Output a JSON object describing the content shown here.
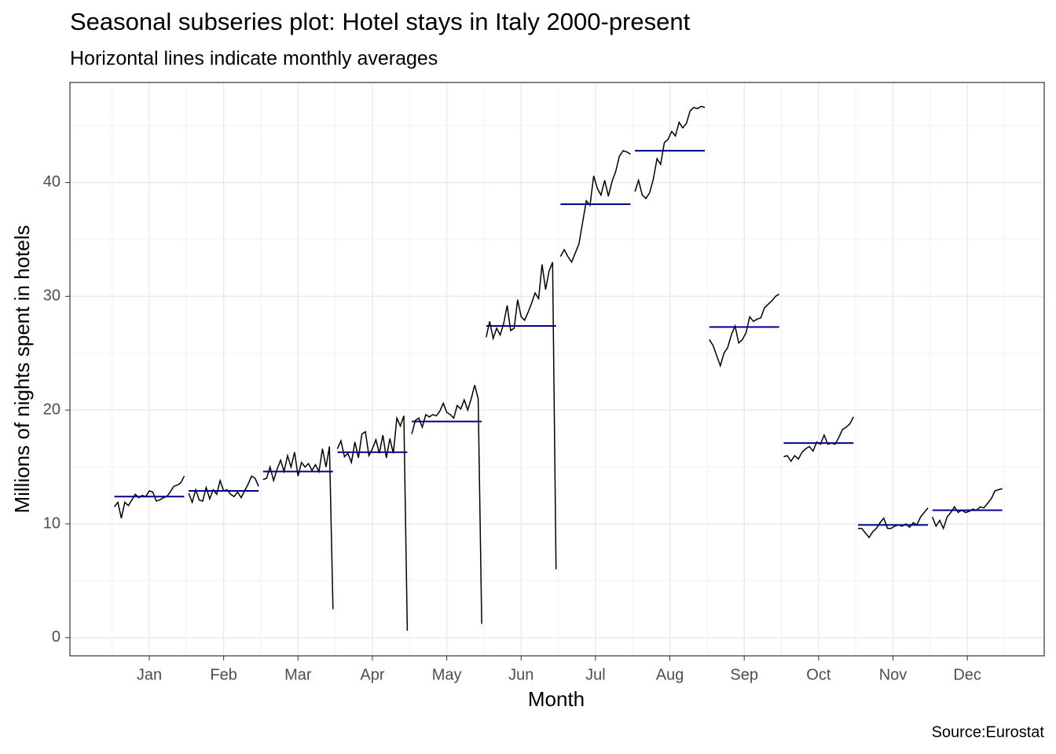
{
  "chart_data": {
    "type": "line",
    "title": "Seasonal subseries plot: Hotel stays in Italy 2000-present",
    "subtitle": "Horizontal lines indicate monthly averages",
    "x_label": "Month",
    "y_label": "Millions of nights spent in hotels",
    "caption": "Source:Eurostat",
    "categories": [
      "Jan",
      "Feb",
      "Mar",
      "Apr",
      "May",
      "Jun",
      "Jul",
      "Aug",
      "Sep",
      "Oct",
      "Nov",
      "Dec"
    ],
    "subseries": [
      [
        11.5,
        11.9,
        10.5,
        11.9,
        11.6,
        12.1,
        12.6,
        12.3,
        12.5,
        12.4,
        12.9,
        12.8,
        12.0,
        12.1,
        12.3,
        12.4,
        12.8,
        13.3,
        13.4,
        13.6,
        14.2
      ],
      [
        12.7,
        11.9,
        13.0,
        12.1,
        12.0,
        13.2,
        12.2,
        13.0,
        12.6,
        13.8,
        12.9,
        13.0,
        12.6,
        12.4,
        12.8,
        12.3,
        12.9,
        13.5,
        14.2,
        14.0,
        13.3
      ],
      [
        13.9,
        14.0,
        15.0,
        13.8,
        14.8,
        15.6,
        14.6,
        16.0,
        15.0,
        16.3,
        14.2,
        15.4,
        15.0,
        15.3,
        14.7,
        15.2,
        14.6,
        16.6,
        15.0,
        16.8,
        2.5
      ],
      [
        16.6,
        17.3,
        15.9,
        16.2,
        15.4,
        17.2,
        15.8,
        17.9,
        18.1,
        16.0,
        16.6,
        17.4,
        16.2,
        17.8,
        15.8,
        17.5,
        16.2,
        19.3,
        18.6,
        19.5,
        0.6
      ],
      [
        17.9,
        19.1,
        19.3,
        18.5,
        19.6,
        19.4,
        19.6,
        19.5,
        19.9,
        20.6,
        19.8,
        19.6,
        19.3,
        20.4,
        20.1,
        20.9,
        20.0,
        21.0,
        22.2,
        21.0,
        1.2
      ],
      [
        26.4,
        27.8,
        26.3,
        27.2,
        26.6,
        27.6,
        29.2,
        27.0,
        27.2,
        29.7,
        28.2,
        27.9,
        28.6,
        29.4,
        30.3,
        29.8,
        32.8,
        30.6,
        32.2,
        33.0,
        6.0
      ],
      [
        33.5,
        34.1,
        33.5,
        33.0,
        33.8,
        34.6,
        36.5,
        38.4,
        38.0,
        40.6,
        39.5,
        38.9,
        40.2,
        38.8,
        40.1,
        41.0,
        42.3,
        42.8,
        42.7,
        42.5
      ],
      [
        39.2,
        40.2,
        38.9,
        38.6,
        39.1,
        40.3,
        42.1,
        41.6,
        43.5,
        43.8,
        44.5,
        44.1,
        45.3,
        44.8,
        45.2,
        46.3,
        46.6,
        46.5,
        46.7,
        46.6
      ],
      [
        26.2,
        25.7,
        24.8,
        23.9,
        25.0,
        25.5,
        26.6,
        27.4,
        25.9,
        26.2,
        26.8,
        28.2,
        27.8,
        28.0,
        28.1,
        29.0,
        29.3,
        29.6,
        30.0,
        30.2
      ],
      [
        15.9,
        16.0,
        15.5,
        16.0,
        15.7,
        16.3,
        16.6,
        16.8,
        16.4,
        17.2,
        17.0,
        17.8,
        17.0,
        17.1,
        17.0,
        17.6,
        18.3,
        18.5,
        18.8,
        19.4
      ],
      [
        9.6,
        9.6,
        9.2,
        8.8,
        9.3,
        9.6,
        10.1,
        10.5,
        9.6,
        9.6,
        9.8,
        9.9,
        9.8,
        10.0,
        9.7,
        10.1,
        9.9,
        10.6,
        11.0,
        11.4
      ],
      [
        10.6,
        9.8,
        10.3,
        9.6,
        10.6,
        11.0,
        11.5,
        11.0,
        11.2,
        11.0,
        11.1,
        11.3,
        11.2,
        11.5,
        11.4,
        11.8,
        12.2,
        12.9,
        13.0,
        13.1
      ]
    ],
    "averages": [
      12.4,
      12.9,
      14.6,
      16.3,
      19.0,
      27.4,
      38.1,
      42.8,
      27.3,
      17.1,
      9.9,
      11.2
    ],
    "color": "#000000",
    "average_color": "#00008b",
    "ylim": [
      -1.6,
      48.8
    ],
    "yticks": [
      0,
      10,
      20,
      30,
      40
    ],
    "y_minor_ticks": [
      5,
      15,
      25,
      35,
      45
    ],
    "grid": true
  }
}
